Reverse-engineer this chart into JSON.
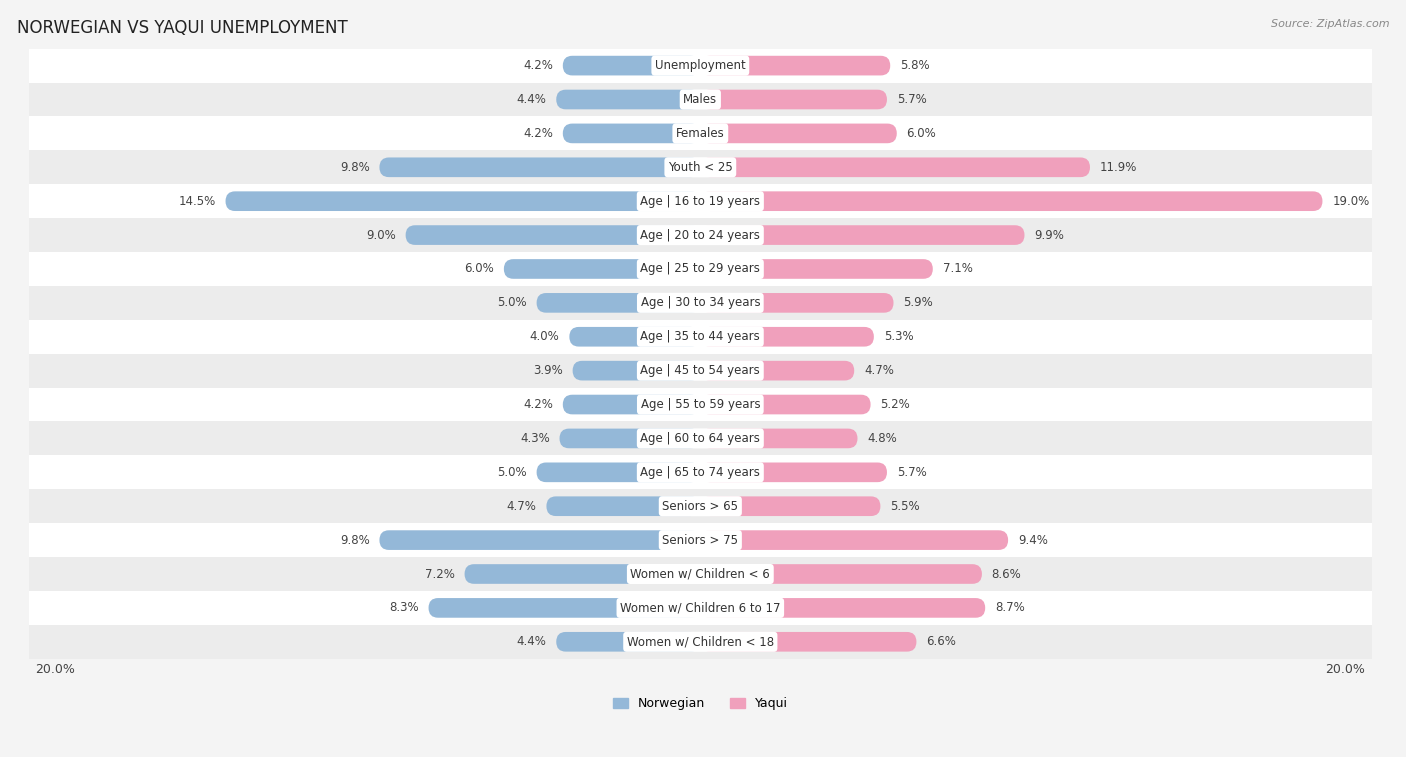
{
  "title": "NORWEGIAN VS YAQUI UNEMPLOYMENT",
  "source": "Source: ZipAtlas.com",
  "categories": [
    "Unemployment",
    "Males",
    "Females",
    "Youth < 25",
    "Age | 16 to 19 years",
    "Age | 20 to 24 years",
    "Age | 25 to 29 years",
    "Age | 30 to 34 years",
    "Age | 35 to 44 years",
    "Age | 45 to 54 years",
    "Age | 55 to 59 years",
    "Age | 60 to 64 years",
    "Age | 65 to 74 years",
    "Seniors > 65",
    "Seniors > 75",
    "Women w/ Children < 6",
    "Women w/ Children 6 to 17",
    "Women w/ Children < 18"
  ],
  "norwegian": [
    4.2,
    4.4,
    4.2,
    9.8,
    14.5,
    9.0,
    6.0,
    5.0,
    4.0,
    3.9,
    4.2,
    4.3,
    5.0,
    4.7,
    9.8,
    7.2,
    8.3,
    4.4
  ],
  "yaqui": [
    5.8,
    5.7,
    6.0,
    11.9,
    19.0,
    9.9,
    7.1,
    5.9,
    5.3,
    4.7,
    5.2,
    4.8,
    5.7,
    5.5,
    9.4,
    8.6,
    8.7,
    6.6
  ],
  "norwegian_color": "#94b8d8",
  "yaqui_color": "#f0a0bc",
  "highlight_rows": [
    4
  ],
  "bar_height": 0.58,
  "bg_color": "#f4f4f4",
  "row_light": "#ffffff",
  "row_dark": "#ececec",
  "max_val": 20.0,
  "legend_norwegian": "Norwegian",
  "legend_yaqui": "Yaqui",
  "label_fontsize": 8.5,
  "value_fontsize": 8.5,
  "title_fontsize": 12
}
